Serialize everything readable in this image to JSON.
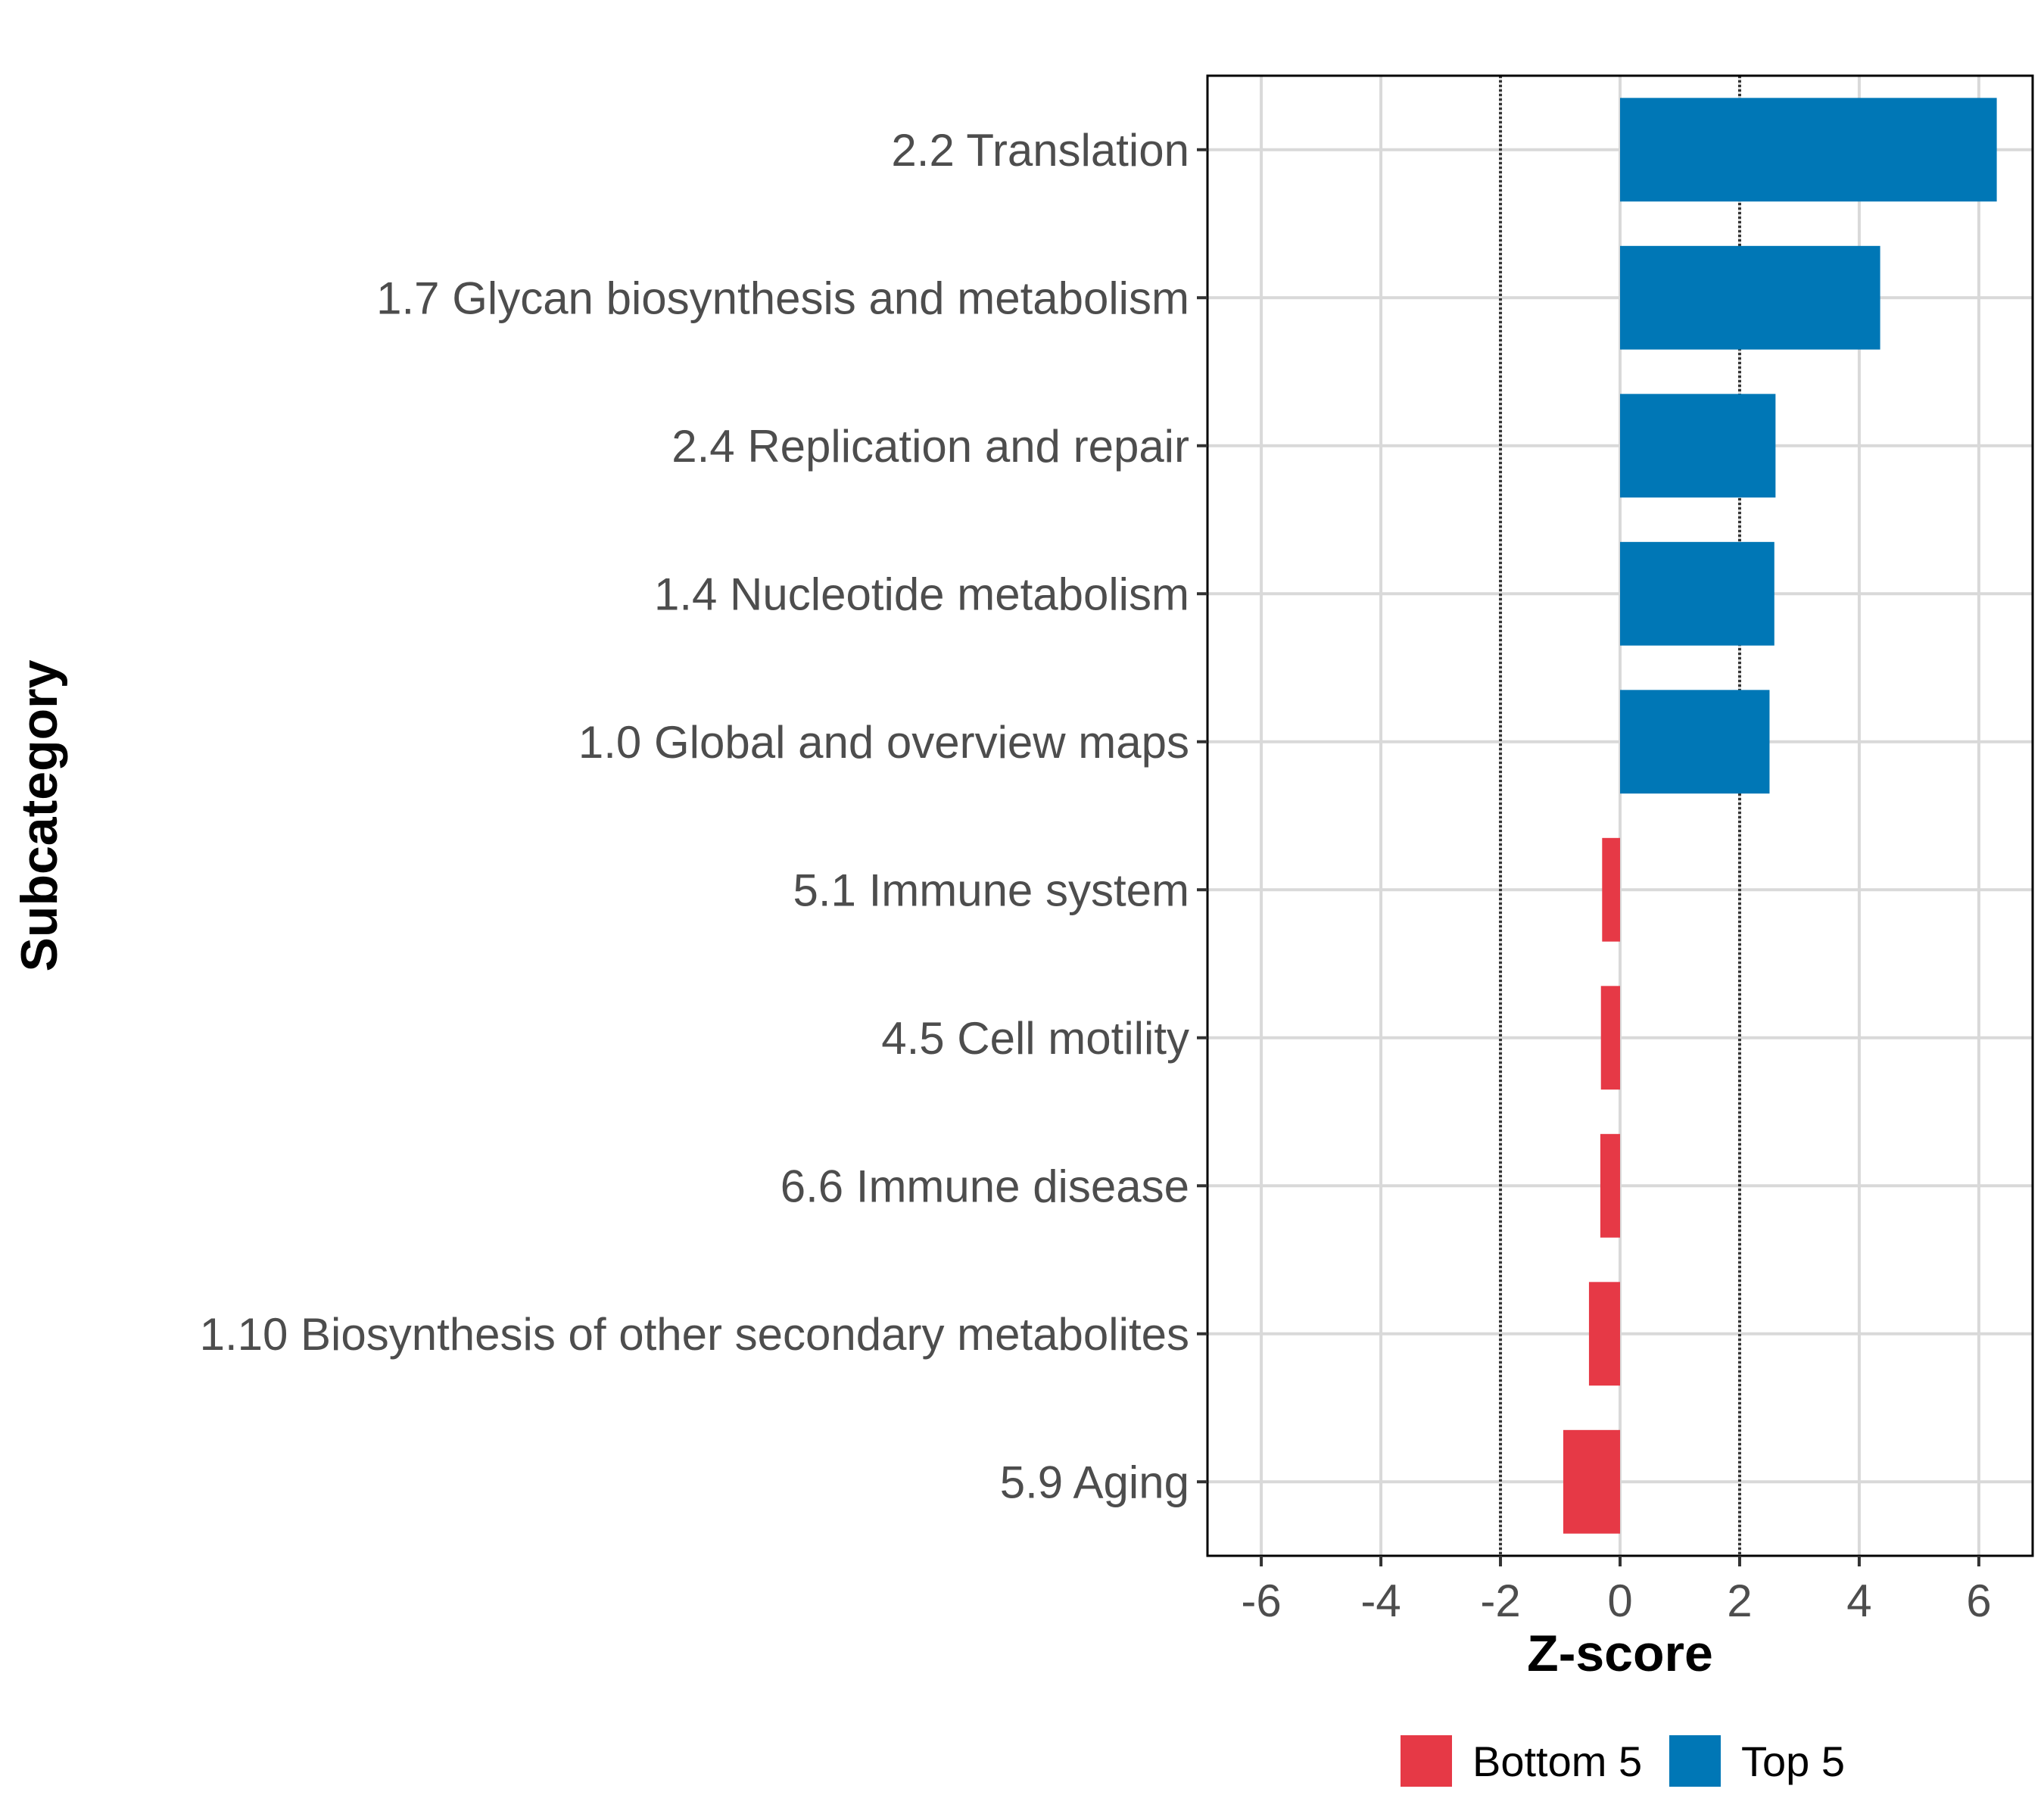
{
  "chart_data": {
    "type": "bar",
    "orientation": "horizontal",
    "xlabel": "Z-score",
    "ylabel": "Subcategory",
    "xlim": [
      -6.9,
      6.9
    ],
    "xticks": [
      -6,
      -4,
      -2,
      0,
      2,
      4,
      6
    ],
    "xtick_labels": [
      "-6",
      "-4",
      "-2",
      "0",
      "2",
      "4",
      "6"
    ],
    "reference_lines": [
      -2,
      2
    ],
    "grid": true,
    "legend_position": "bottom",
    "categories": [
      "2.2 Translation",
      "1.7 Glycan biosynthesis and metabolism",
      "2.4 Replication and repair",
      "1.4 Nucleotide metabolism",
      "1.0 Global and overview maps",
      "5.1 Immune system",
      "4.5 Cell motility",
      "6.6 Immune disease",
      "1.10 Biosynthesis of other secondary metabolites",
      "5.9 Aging"
    ],
    "values": [
      6.3,
      4.35,
      2.6,
      2.58,
      2.5,
      -0.3,
      -0.32,
      -0.33,
      -0.52,
      -0.95
    ],
    "groups": [
      "Top 5",
      "Top 5",
      "Top 5",
      "Top 5",
      "Top 5",
      "Bottom 5",
      "Bottom 5",
      "Bottom 5",
      "Bottom 5",
      "Bottom 5"
    ],
    "legend": [
      {
        "name": "Bottom 5",
        "color": "#e63946"
      },
      {
        "name": "Top 5",
        "color": "#0077b6"
      }
    ]
  }
}
